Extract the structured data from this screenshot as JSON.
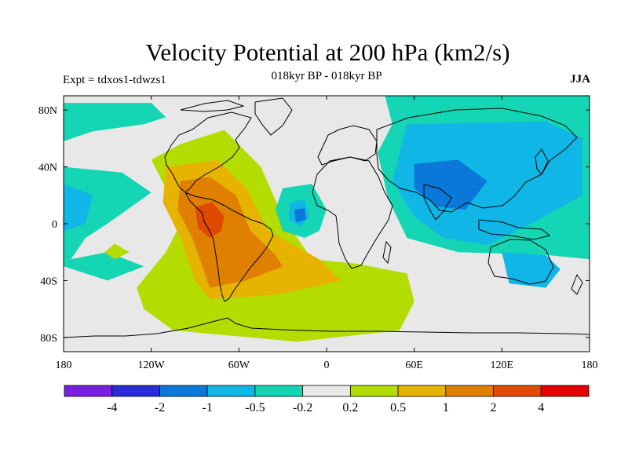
{
  "title": "Velocity Potential at 200 hPa (km2/s)",
  "subtitle": "018kyr BP - 018kyr BP",
  "experiment_label": "Expt = tdxos1-tdwzs1",
  "season": "JJA",
  "map": {
    "lon_range": [
      -180,
      180
    ],
    "lat_range": [
      -90,
      90
    ],
    "lon_ticks": [
      {
        "value": -180,
        "label": "180"
      },
      {
        "value": -120,
        "label": "120W"
      },
      {
        "value": -60,
        "label": "60W"
      },
      {
        "value": 0,
        "label": "0"
      },
      {
        "value": 60,
        "label": "60E"
      },
      {
        "value": 120,
        "label": "120E"
      },
      {
        "value": 180,
        "label": "180"
      }
    ],
    "lat_ticks": [
      {
        "value": 80,
        "label": "80N"
      },
      {
        "value": 40,
        "label": "40N"
      },
      {
        "value": 0,
        "label": "0"
      },
      {
        "value": -40,
        "label": "40S"
      },
      {
        "value": -80,
        "label": "80S"
      }
    ],
    "background_color": "#e8e8e8"
  },
  "colorbar": {
    "colors": [
      "#7a1fe0",
      "#2a2ad6",
      "#0a78d8",
      "#10b6e6",
      "#14d6b4",
      "#e8e8e8",
      "#b4dc00",
      "#e6b400",
      "#e08000",
      "#e04a00",
      "#e60000"
    ],
    "labels": [
      "-4",
      "-2",
      "-1",
      "-0.5",
      "-0.2",
      "0.2",
      "0.5",
      "1",
      "2",
      "4"
    ]
  },
  "regions": [
    {
      "name": "region-americas-positive",
      "color": "#b4dc00",
      "points": [
        [
          -100,
          56
        ],
        [
          -70,
          66
        ],
        [
          -45,
          40
        ],
        [
          -30,
          5
        ],
        [
          -10,
          -25
        ],
        [
          20,
          -28
        ],
        [
          55,
          -35
        ],
        [
          60,
          -55
        ],
        [
          50,
          -75
        ],
        [
          -20,
          -83
        ],
        [
          -105,
          -75
        ],
        [
          -125,
          -60
        ],
        [
          -130,
          -45
        ],
        [
          -110,
          -20
        ],
        [
          -100,
          0
        ],
        [
          -110,
          25
        ],
        [
          -120,
          45
        ]
      ]
    },
    {
      "name": "region-americas-moderate",
      "color": "#e6b400",
      "points": [
        [
          -110,
          40
        ],
        [
          -75,
          45
        ],
        [
          -55,
          25
        ],
        [
          -40,
          -5
        ],
        [
          -5,
          -25
        ],
        [
          10,
          -40
        ],
        [
          -35,
          -50
        ],
        [
          -80,
          -53
        ],
        [
          -90,
          -40
        ],
        [
          -100,
          -10
        ],
        [
          -112,
          15
        ]
      ]
    },
    {
      "name": "region-americas-strong",
      "color": "#e08000",
      "points": [
        [
          -100,
          30
        ],
        [
          -80,
          33
        ],
        [
          -62,
          20
        ],
        [
          -52,
          -5
        ],
        [
          -35,
          -22
        ],
        [
          -30,
          -30
        ],
        [
          -55,
          -40
        ],
        [
          -80,
          -45
        ],
        [
          -85,
          -30
        ],
        [
          -92,
          -10
        ],
        [
          -102,
          10
        ]
      ]
    },
    {
      "name": "region-americas-peak",
      "color": "#e04a00",
      "points": [
        [
          -90,
          12
        ],
        [
          -78,
          15
        ],
        [
          -70,
          5
        ],
        [
          -72,
          -5
        ],
        [
          -80,
          -10
        ],
        [
          -88,
          -3
        ]
      ]
    },
    {
      "name": "region-pacific-negative-west",
      "color": "#14d6b4",
      "points": [
        [
          -180,
          40
        ],
        [
          -140,
          36
        ],
        [
          -120,
          22
        ],
        [
          -150,
          0
        ],
        [
          -165,
          -10
        ],
        [
          -175,
          -25
        ],
        [
          -150,
          -20
        ],
        [
          -125,
          -30
        ],
        [
          -150,
          -40
        ],
        [
          -180,
          -30
        ]
      ]
    },
    {
      "name": "region-pacific-mid-west",
      "color": "#10b6e6",
      "points": [
        [
          -180,
          28
        ],
        [
          -160,
          20
        ],
        [
          -165,
          0
        ],
        [
          -180,
          -5
        ]
      ]
    },
    {
      "name": "region-pacific-pocket",
      "color": "#b4dc00",
      "points": [
        [
          -145,
          -14
        ],
        [
          -135,
          -20
        ],
        [
          -145,
          -25
        ],
        [
          -152,
          -20
        ]
      ]
    },
    {
      "name": "region-arctic-negative",
      "color": "#14d6b4",
      "points": [
        [
          -180,
          85
        ],
        [
          -120,
          85
        ],
        [
          -110,
          75
        ],
        [
          -125,
          70
        ],
        [
          -160,
          65
        ],
        [
          -180,
          58
        ]
      ]
    },
    {
      "name": "region-atlantic-negative",
      "color": "#14d6b4",
      "points": [
        [
          -30,
          25
        ],
        [
          -10,
          28
        ],
        [
          0,
          10
        ],
        [
          -5,
          -5
        ],
        [
          -15,
          -10
        ],
        [
          -30,
          -5
        ],
        [
          -35,
          10
        ]
      ]
    },
    {
      "name": "region-atlantic-mid",
      "color": "#10b6e6",
      "points": [
        [
          -25,
          15
        ],
        [
          -15,
          17
        ],
        [
          -12,
          5
        ],
        [
          -18,
          -2
        ],
        [
          -26,
          3
        ]
      ]
    },
    {
      "name": "region-atlantic-core",
      "color": "#0a78d8",
      "points": [
        [
          -22,
          10
        ],
        [
          -15,
          11
        ],
        [
          -14,
          3
        ],
        [
          -21,
          1
        ]
      ]
    },
    {
      "name": "region-eurasia-negative",
      "color": "#14d6b4",
      "points": [
        [
          40,
          90
        ],
        [
          180,
          90
        ],
        [
          180,
          -25
        ],
        [
          150,
          -22
        ],
        [
          90,
          -20
        ],
        [
          55,
          -10
        ],
        [
          42,
          18
        ],
        [
          35,
          50
        ],
        [
          45,
          70
        ]
      ]
    },
    {
      "name": "region-eurasia-mid",
      "color": "#10b6e6",
      "points": [
        [
          55,
          70
        ],
        [
          150,
          72
        ],
        [
          175,
          60
        ],
        [
          175,
          20
        ],
        [
          140,
          0
        ],
        [
          110,
          -15
        ],
        [
          80,
          -10
        ],
        [
          60,
          5
        ],
        [
          45,
          30
        ]
      ]
    },
    {
      "name": "region-asia-core",
      "color": "#0a78d8",
      "points": [
        [
          60,
          42
        ],
        [
          90,
          45
        ],
        [
          110,
          30
        ],
        [
          95,
          10
        ],
        [
          75,
          12
        ],
        [
          60,
          25
        ]
      ]
    },
    {
      "name": "region-australia-negative",
      "color": "#10b6e6",
      "points": [
        [
          120,
          -20
        ],
        [
          150,
          -22
        ],
        [
          160,
          -32
        ],
        [
          150,
          -45
        ],
        [
          125,
          -42
        ]
      ]
    }
  ]
}
